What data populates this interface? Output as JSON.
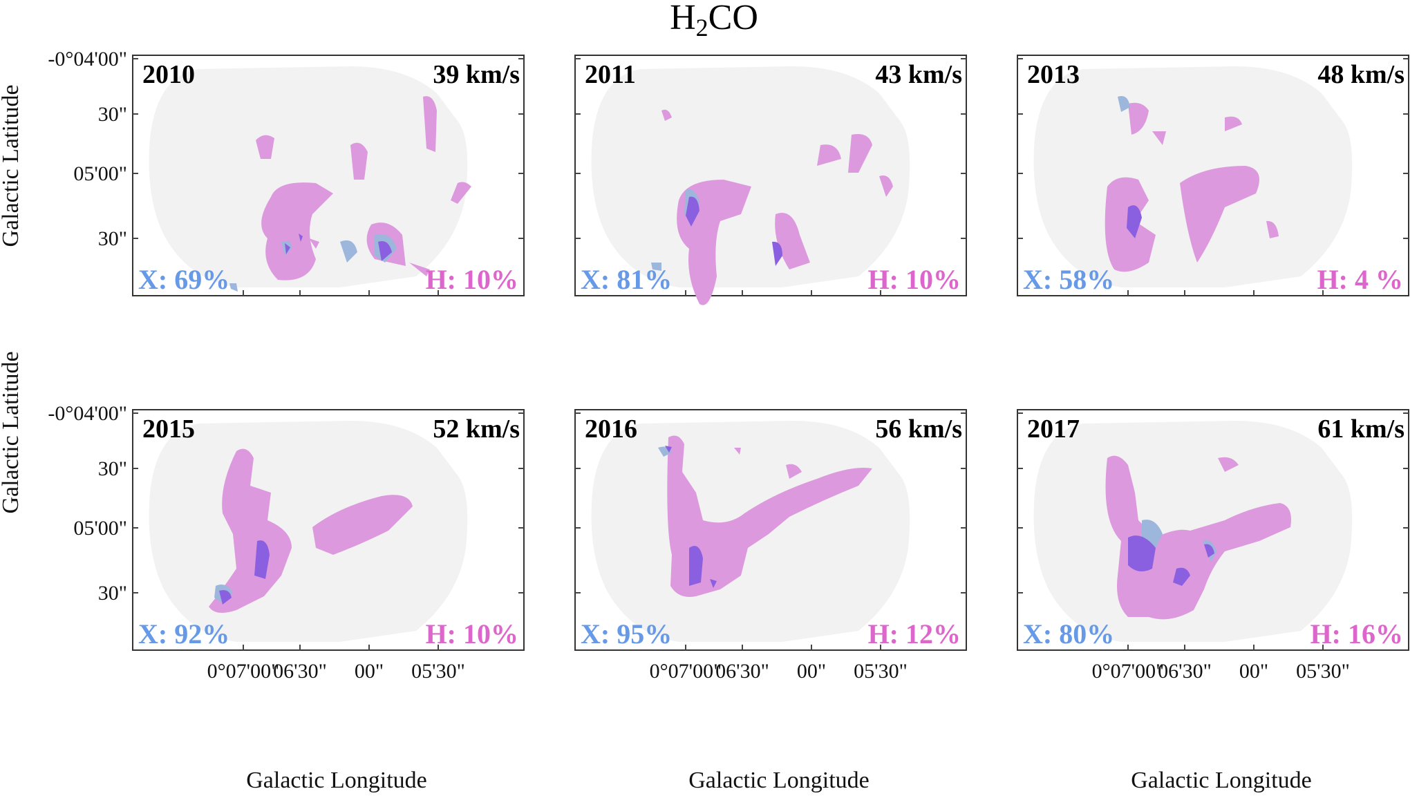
{
  "title": {
    "main": "H",
    "subscript": "2",
    "suffix": "CO"
  },
  "colors": {
    "x_color": "#6699e6",
    "h_color": "#dd66cc",
    "x_fill": "#9db6dc",
    "h_fill": "#dd99dd",
    "overlap_fill": "#8a5fe0",
    "footprint": "#f2f2f2"
  },
  "axes": {
    "ylabel": "Galactic Latitude",
    "xlabel": "Galactic Longitude",
    "yticks": [
      "-0°04'00\"",
      "30\"",
      "05'00\"",
      "30\""
    ],
    "xticks": [
      "0°07'00\"",
      "06'30\"",
      "00\"",
      "05'30\""
    ]
  },
  "chart_data": {
    "type": "contour-map",
    "title": "H2CO",
    "xlabel": "Galactic Longitude",
    "ylabel": "Galactic Latitude",
    "xticks": [
      "0°07'00\"",
      "06'30\"",
      "00\"",
      "05'30\""
    ],
    "yticks": [
      "-0°04'00\"",
      "30\"",
      "05'00\"",
      "30\""
    ],
    "panels": [
      {
        "year": "2010",
        "velocity": "39 km/s",
        "x_label": "X: 69%",
        "h_label": "H: 10%",
        "x_percent": 69,
        "h_percent": 10
      },
      {
        "year": "2011",
        "velocity": "43 km/s",
        "x_label": "X: 81%",
        "h_label": "H: 10%",
        "x_percent": 81,
        "h_percent": 10
      },
      {
        "year": "2013",
        "velocity": "48 km/s",
        "x_label": "X: 58%",
        "h_label": "H:  4 %",
        "x_percent": 58,
        "h_percent": 4
      },
      {
        "year": "2015",
        "velocity": "52 km/s",
        "x_label": "X: 92%",
        "h_label": "H: 10%",
        "x_percent": 92,
        "h_percent": 10
      },
      {
        "year": "2016",
        "velocity": "56 km/s",
        "x_label": "X: 95%",
        "h_label": "H: 12%",
        "x_percent": 95,
        "h_percent": 12
      },
      {
        "year": "2017",
        "velocity": "61 km/s",
        "x_label": "X: 80%",
        "h_label": "H: 16%",
        "x_percent": 80,
        "h_percent": 16
      }
    ]
  }
}
